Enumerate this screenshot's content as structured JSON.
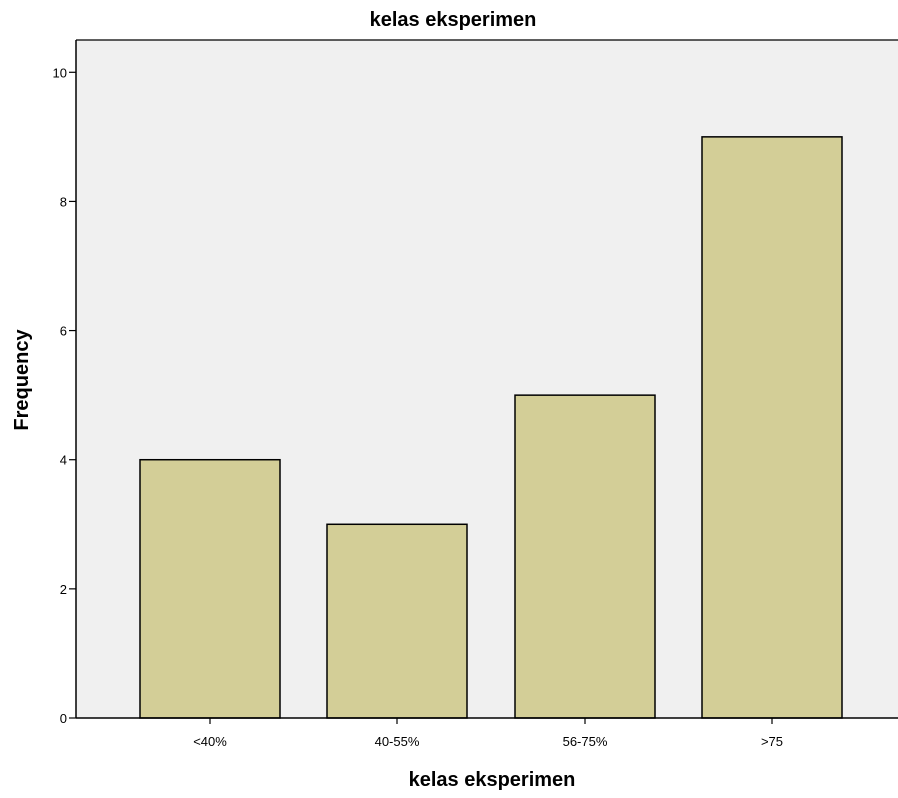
{
  "chart_data": {
    "type": "bar",
    "title": "kelas eksperimen",
    "xlabel": "kelas eksperimen",
    "ylabel": "Frequency",
    "categories": [
      "<40%",
      "40-55%",
      "56-75%",
      ">75"
    ],
    "values": [
      4,
      3,
      5,
      9
    ],
    "ylim": [
      0,
      10.5
    ],
    "yticks": [
      0,
      2,
      4,
      6,
      8,
      10
    ],
    "grid": false,
    "colors": {
      "plot_background": "#f0f0f0",
      "bar_fill": "#d3ce97",
      "bar_stroke": "#000000"
    }
  }
}
